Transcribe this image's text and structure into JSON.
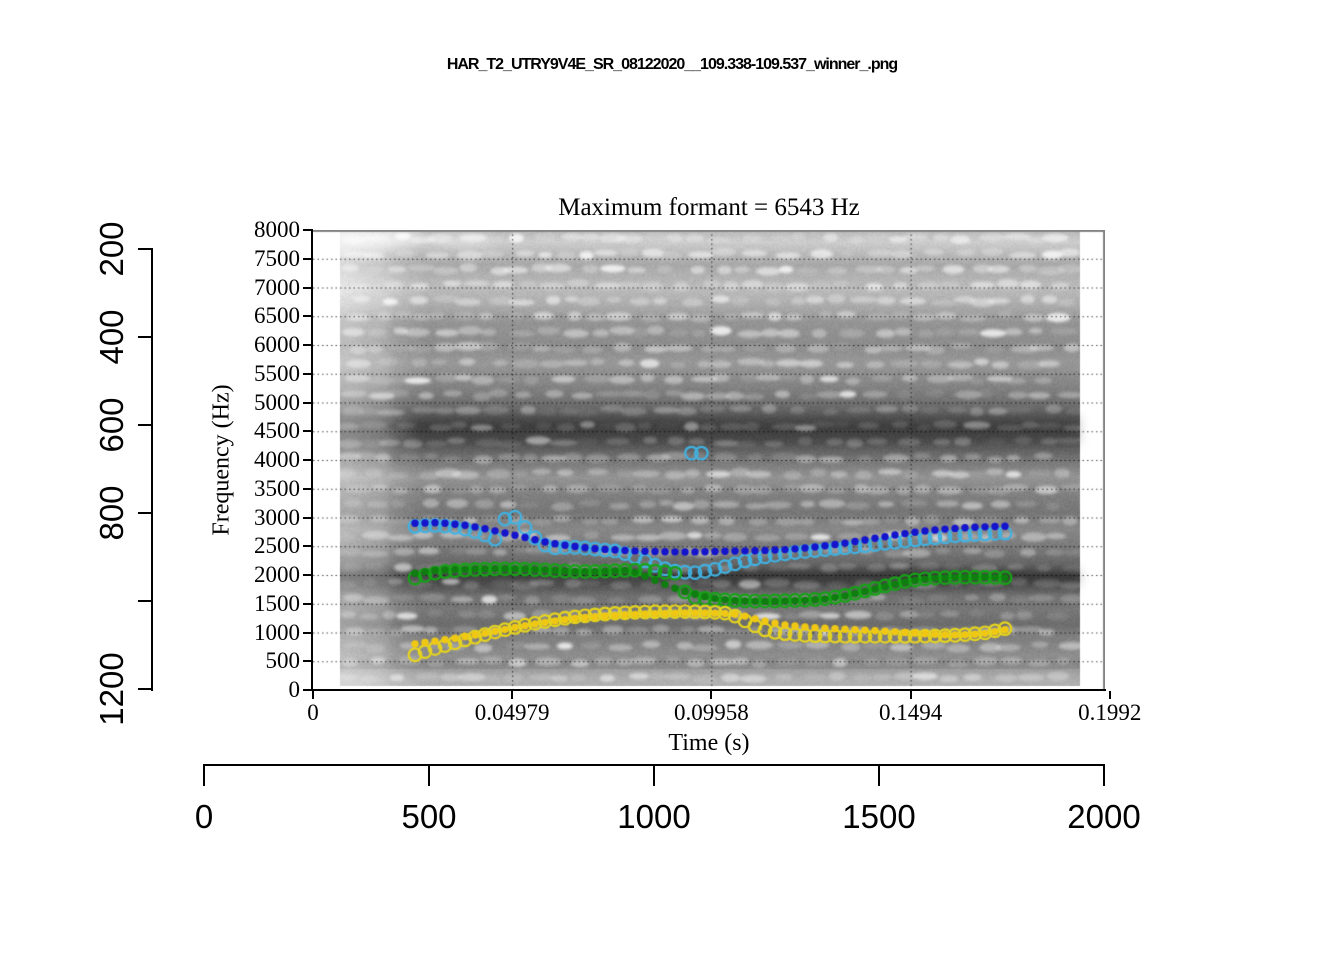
{
  "page": {
    "title": "HAR_T2_UTRY9V4E_SR_08122020__109.338-109.537_winner_.png",
    "background": "#ffffff"
  },
  "chart_data": {
    "type": "heatmap",
    "subtype": "spectrogram_with_formant_tracks",
    "title": "Maximum formant = 6543 Hz",
    "xlabel": "Time (s)",
    "ylabel": "Frequency (Hz)",
    "xlim": [
      0,
      0.1992
    ],
    "ylim": [
      0,
      8000
    ],
    "grid": "dotted black lines at every labeled tick, horizontal 500-7500 Hz and vertical at time ticks",
    "x_ticks": {
      "values": [
        0,
        0.04979,
        0.09958,
        0.1494,
        0.1992
      ],
      "labels": [
        "0",
        "0.04979",
        "0.09958",
        "0.1494",
        "0.1992"
      ]
    },
    "y_ticks": {
      "values": [
        0,
        500,
        1000,
        1500,
        2000,
        2500,
        3000,
        3500,
        4000,
        4500,
        5000,
        5500,
        6000,
        6500,
        7000,
        7500,
        8000
      ],
      "labels": [
        "0",
        "500",
        "1000",
        "1500",
        "2000",
        "2500",
        "3000",
        "3500",
        "4000",
        "4500",
        "5000",
        "5500",
        "6000",
        "6500",
        "7000",
        "7500",
        "8000"
      ]
    },
    "spectrogram": {
      "description": "grayscale broadband spectrogram with horizontal harmonic striations, dark bands near 4300-4750 Hz and 1850-2050 Hz, lighter region at left edge and top-left",
      "time_span_s": [
        0.007,
        0.192
      ],
      "freq_span_hz": [
        0,
        8000
      ]
    },
    "colors": {
      "track_blue_winner": "#1414cc",
      "track_cyan_candidate": "#41b1e1",
      "track_green_winner": "#0f7d0f",
      "track_green_candidate": "#16a316",
      "track_yellow_winner": "#f0c814",
      "track_yellow_candidate": "#e6d41e",
      "axis": "#000000",
      "box_top_right": "#848484"
    },
    "series": [
      {
        "name": "F3 winner track (blue filled dots)",
        "marker": "filled-dot",
        "color": "#1414cc",
        "points": [
          [
            0.0255,
            2900
          ],
          [
            0.03,
            2910
          ],
          [
            0.034,
            2895
          ],
          [
            0.038,
            2865
          ],
          [
            0.042,
            2820
          ],
          [
            0.046,
            2760
          ],
          [
            0.05,
            2700
          ],
          [
            0.054,
            2635
          ],
          [
            0.058,
            2575
          ],
          [
            0.062,
            2525
          ],
          [
            0.066,
            2490
          ],
          [
            0.07,
            2460
          ],
          [
            0.074,
            2440
          ],
          [
            0.078,
            2425
          ],
          [
            0.082,
            2415
          ],
          [
            0.086,
            2408
          ],
          [
            0.09,
            2403
          ],
          [
            0.094,
            2400
          ],
          [
            0.098,
            2405
          ],
          [
            0.102,
            2412
          ],
          [
            0.106,
            2418
          ],
          [
            0.11,
            2422
          ],
          [
            0.114,
            2430
          ],
          [
            0.118,
            2442
          ],
          [
            0.122,
            2462
          ],
          [
            0.126,
            2490
          ],
          [
            0.13,
            2525
          ],
          [
            0.134,
            2565
          ],
          [
            0.138,
            2610
          ],
          [
            0.142,
            2655
          ],
          [
            0.146,
            2700
          ],
          [
            0.15,
            2740
          ],
          [
            0.154,
            2772
          ],
          [
            0.158,
            2798
          ],
          [
            0.162,
            2818
          ],
          [
            0.166,
            2832
          ],
          [
            0.17,
            2842
          ],
          [
            0.1745,
            2850
          ]
        ]
      },
      {
        "name": "F3 candidate track (cyan open circles)",
        "marker": "open-circle",
        "color": "#41b1e1",
        "points": [
          [
            0.0255,
            2845
          ],
          [
            0.03,
            2865
          ],
          [
            0.034,
            2845
          ],
          [
            0.038,
            2800
          ],
          [
            0.041,
            2745
          ],
          [
            0.044,
            2672
          ],
          [
            0.0465,
            2590
          ],
          [
            0.0487,
            3150
          ],
          [
            0.05,
            3040
          ],
          [
            0.052,
            2900
          ],
          [
            0.054,
            2752
          ],
          [
            0.056,
            2615
          ],
          [
            0.058,
            2520
          ],
          [
            0.061,
            2465
          ],
          [
            0.064,
            2490
          ],
          [
            0.068,
            2470
          ],
          [
            0.072,
            2440
          ],
          [
            0.076,
            2415
          ],
          [
            0.08,
            2330
          ],
          [
            0.083,
            2245
          ],
          [
            0.086,
            2155
          ],
          [
            0.089,
            2085
          ],
          [
            0.092,
            2050
          ],
          [
            0.096,
            2040
          ],
          [
            0.1,
            2090
          ],
          [
            0.104,
            2165
          ],
          [
            0.108,
            2245
          ],
          [
            0.112,
            2305
          ],
          [
            0.116,
            2350
          ],
          [
            0.12,
            2388
          ],
          [
            0.124,
            2415
          ],
          [
            0.128,
            2442
          ],
          [
            0.132,
            2468
          ],
          [
            0.136,
            2495
          ],
          [
            0.14,
            2525
          ],
          [
            0.144,
            2558
          ],
          [
            0.148,
            2590
          ],
          [
            0.152,
            2622
          ],
          [
            0.156,
            2652
          ],
          [
            0.16,
            2678
          ],
          [
            0.164,
            2698
          ],
          [
            0.168,
            2714
          ],
          [
            0.172,
            2726
          ],
          [
            0.1745,
            2730
          ]
        ],
        "outlier_points": [
          [
            0.0946,
            4120
          ],
          [
            0.0971,
            4120
          ]
        ]
      },
      {
        "name": "F2 winner track (green filled dots)",
        "marker": "filled-dot",
        "color": "#0f7d0f",
        "points": [
          [
            0.0255,
            2030
          ],
          [
            0.03,
            2075
          ],
          [
            0.034,
            2092
          ],
          [
            0.038,
            2100
          ],
          [
            0.042,
            2105
          ],
          [
            0.046,
            2108
          ],
          [
            0.05,
            2110
          ],
          [
            0.054,
            2102
          ],
          [
            0.058,
            2090
          ],
          [
            0.062,
            2072
          ],
          [
            0.066,
            2060
          ],
          [
            0.07,
            2060
          ],
          [
            0.074,
            2068
          ],
          [
            0.078,
            2078
          ],
          [
            0.081,
            2040
          ],
          [
            0.084,
            1950
          ],
          [
            0.087,
            1865
          ],
          [
            0.09,
            1782
          ],
          [
            0.093,
            1712
          ],
          [
            0.096,
            1655
          ],
          [
            0.099,
            1608
          ],
          [
            0.102,
            1578
          ],
          [
            0.105,
            1560
          ],
          [
            0.108,
            1548
          ],
          [
            0.112,
            1540
          ],
          [
            0.116,
            1544
          ],
          [
            0.12,
            1552
          ],
          [
            0.124,
            1562
          ],
          [
            0.128,
            1584
          ],
          [
            0.132,
            1622
          ],
          [
            0.136,
            1680
          ],
          [
            0.14,
            1748
          ],
          [
            0.144,
            1818
          ],
          [
            0.148,
            1878
          ],
          [
            0.152,
            1920
          ],
          [
            0.156,
            1945
          ],
          [
            0.16,
            1956
          ],
          [
            0.164,
            1960
          ],
          [
            0.168,
            1960
          ],
          [
            0.172,
            1954
          ],
          [
            0.1745,
            1950
          ]
        ]
      },
      {
        "name": "F2 candidate track (green open circles)",
        "marker": "open-circle",
        "color": "#16a316",
        "points": [
          [
            0.0255,
            1948
          ],
          [
            0.029,
            2015
          ],
          [
            0.033,
            2062
          ],
          [
            0.037,
            2085
          ],
          [
            0.041,
            2098
          ],
          [
            0.045,
            2105
          ],
          [
            0.05,
            2108
          ],
          [
            0.054,
            2100
          ],
          [
            0.058,
            2088
          ],
          [
            0.062,
            2072
          ],
          [
            0.066,
            2062
          ],
          [
            0.07,
            2062
          ],
          [
            0.074,
            2070
          ],
          [
            0.078,
            2080
          ],
          [
            0.082,
            2088
          ],
          [
            0.085,
            2072
          ],
          [
            0.088,
            2048
          ],
          [
            0.091,
            2025
          ],
          [
            0.0935,
            1625
          ],
          [
            0.096,
            1605
          ],
          [
            0.1,
            1582
          ],
          [
            0.104,
            1562
          ],
          [
            0.108,
            1550
          ],
          [
            0.112,
            1545
          ],
          [
            0.116,
            1548
          ],
          [
            0.12,
            1556
          ],
          [
            0.124,
            1566
          ],
          [
            0.128,
            1590
          ],
          [
            0.132,
            1630
          ],
          [
            0.136,
            1688
          ],
          [
            0.14,
            1758
          ],
          [
            0.144,
            1828
          ],
          [
            0.148,
            1888
          ],
          [
            0.152,
            1928
          ],
          [
            0.156,
            1950
          ],
          [
            0.16,
            1960
          ],
          [
            0.164,
            1964
          ],
          [
            0.168,
            1962
          ],
          [
            0.172,
            1956
          ],
          [
            0.1745,
            1950
          ]
        ]
      },
      {
        "name": "F1 winner track (yellow filled dots)",
        "marker": "filled-dot",
        "color": "#f0c814",
        "points": [
          [
            0.0255,
            800
          ],
          [
            0.03,
            845
          ],
          [
            0.034,
            885
          ],
          [
            0.038,
            928
          ],
          [
            0.042,
            975
          ],
          [
            0.046,
            1028
          ],
          [
            0.05,
            1080
          ],
          [
            0.054,
            1130
          ],
          [
            0.058,
            1175
          ],
          [
            0.062,
            1215
          ],
          [
            0.066,
            1248
          ],
          [
            0.07,
            1272
          ],
          [
            0.074,
            1292
          ],
          [
            0.078,
            1308
          ],
          [
            0.082,
            1320
          ],
          [
            0.086,
            1330
          ],
          [
            0.09,
            1336
          ],
          [
            0.094,
            1340
          ],
          [
            0.098,
            1340
          ],
          [
            0.102,
            1335
          ],
          [
            0.105,
            1322
          ],
          [
            0.108,
            1285
          ],
          [
            0.111,
            1228
          ],
          [
            0.114,
            1178
          ],
          [
            0.117,
            1142
          ],
          [
            0.12,
            1115
          ],
          [
            0.124,
            1092
          ],
          [
            0.128,
            1075
          ],
          [
            0.132,
            1060
          ],
          [
            0.136,
            1046
          ],
          [
            0.14,
            1032
          ],
          [
            0.144,
            1018
          ],
          [
            0.148,
            1000
          ],
          [
            0.152,
            982
          ],
          [
            0.156,
            966
          ],
          [
            0.16,
            958
          ],
          [
            0.164,
            962
          ],
          [
            0.168,
            985
          ],
          [
            0.171,
            1020
          ],
          [
            0.1735,
            1055
          ],
          [
            0.1745,
            1080
          ]
        ]
      },
      {
        "name": "F1 candidate track (yellow open circles)",
        "marker": "open-circle",
        "color": "#e6d41e",
        "points": [
          [
            0.0255,
            612
          ],
          [
            0.029,
            690
          ],
          [
            0.033,
            772
          ],
          [
            0.037,
            852
          ],
          [
            0.041,
            928
          ],
          [
            0.045,
            1000
          ],
          [
            0.049,
            1066
          ],
          [
            0.053,
            1126
          ],
          [
            0.057,
            1180
          ],
          [
            0.061,
            1228
          ],
          [
            0.065,
            1268
          ],
          [
            0.069,
            1298
          ],
          [
            0.073,
            1322
          ],
          [
            0.077,
            1340
          ],
          [
            0.081,
            1352
          ],
          [
            0.085,
            1360
          ],
          [
            0.089,
            1364
          ],
          [
            0.093,
            1364
          ],
          [
            0.097,
            1360
          ],
          [
            0.101,
            1350
          ],
          [
            0.104,
            1330
          ],
          [
            0.107,
            1240
          ],
          [
            0.11,
            1130
          ],
          [
            0.113,
            1045
          ],
          [
            0.116,
            995
          ],
          [
            0.12,
            965
          ],
          [
            0.124,
            948
          ],
          [
            0.128,
            940
          ],
          [
            0.132,
            936
          ],
          [
            0.136,
            934
          ],
          [
            0.14,
            934
          ],
          [
            0.144,
            934
          ],
          [
            0.148,
            935
          ],
          [
            0.152,
            936
          ],
          [
            0.156,
            940
          ],
          [
            0.16,
            950
          ],
          [
            0.164,
            968
          ],
          [
            0.168,
            995
          ],
          [
            0.171,
            1035
          ],
          [
            0.1735,
            1075
          ],
          [
            0.1745,
            1100
          ]
        ]
      }
    ],
    "outer_axes": {
      "left": {
        "tick_values": [
          200,
          400,
          600,
          800,
          1000,
          1200
        ],
        "tick_labels": [
          "200",
          "400",
          "600",
          "800",
          "",
          "1200"
        ],
        "label_orientation": "rotated 90 degrees counterclockwise"
      },
      "bottom": {
        "tick_values": [
          0,
          500,
          1000,
          1500,
          2000
        ],
        "tick_labels": [
          "0",
          "500",
          "1000",
          "1500",
          "2000"
        ]
      }
    }
  }
}
